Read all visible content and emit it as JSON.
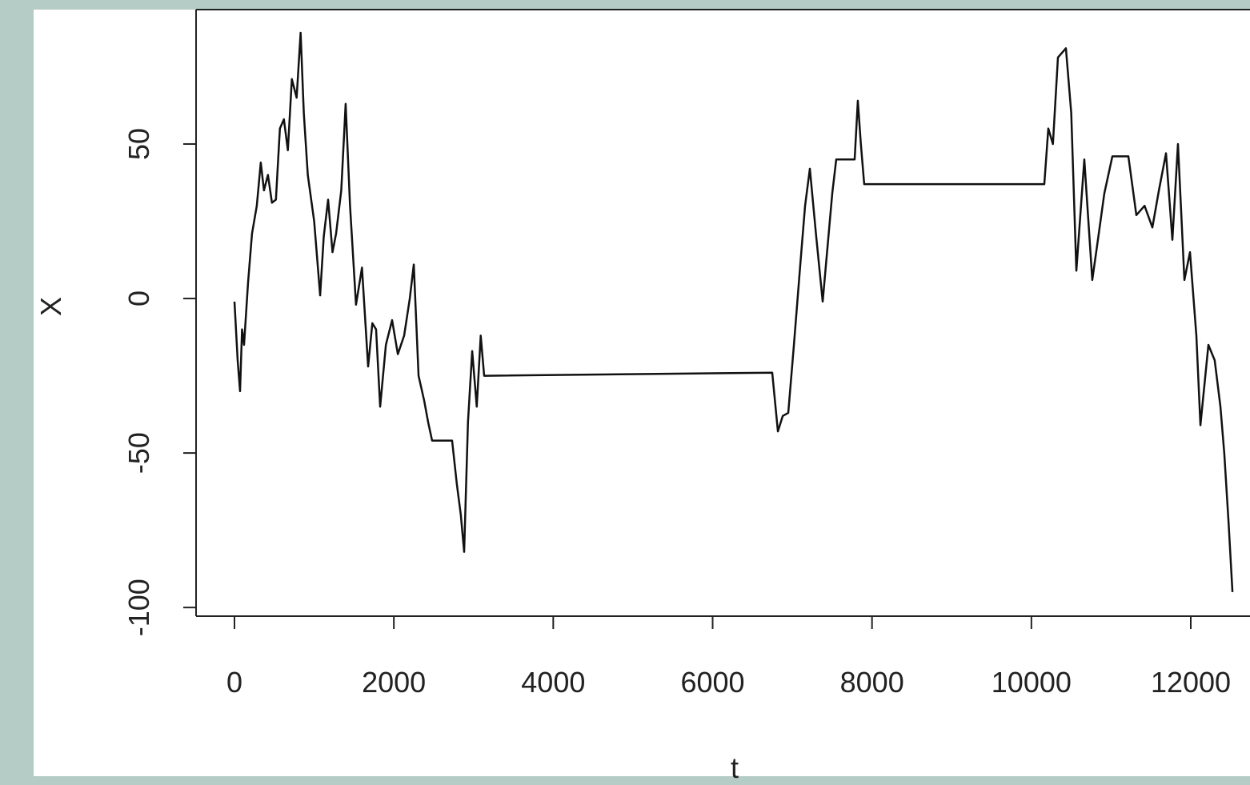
{
  "chart_data": {
    "type": "line",
    "x_label": "t",
    "y_label": "X",
    "x": [
      0,
      40,
      70,
      95,
      120,
      170,
      220,
      280,
      330,
      370,
      420,
      470,
      520,
      570,
      620,
      670,
      720,
      780,
      830,
      870,
      920,
      1000,
      1075,
      1120,
      1175,
      1230,
      1275,
      1340,
      1395,
      1450,
      1525,
      1600,
      1677,
      1730,
      1777,
      1828,
      1900,
      1978,
      2050,
      2129,
      2200,
      2250,
      2310,
      2380,
      2430,
      2480,
      2731,
      2790,
      2840,
      2882,
      2930,
      2983,
      3040,
      3090,
      3133,
      6748,
      6819,
      6880,
      6949,
      7020,
      7100,
      7160,
      7220,
      7300,
      7381,
      7501,
      7551,
      7782,
      7822,
      7860,
      7902,
      10162,
      10212,
      10270,
      10333,
      10433,
      10500,
      10564,
      10664,
      10764,
      10840,
      10915,
      11016,
      11217,
      11317,
      11420,
      11518,
      11600,
      11689,
      11769,
      11839,
      11920,
      11990,
      12070,
      12121,
      12221,
      12300,
      12372,
      12420,
      12473,
      12523
    ],
    "values": [
      -1,
      -20,
      -30,
      -10,
      -15,
      5,
      21,
      30,
      44,
      35,
      40,
      31,
      32,
      55,
      58,
      48,
      71,
      65,
      86,
      60,
      40,
      25,
      1,
      20,
      32,
      15,
      21,
      35,
      63,
      30,
      -2,
      10,
      -22,
      -8,
      -10,
      -35,
      -15,
      -7,
      -18,
      -12,
      0,
      11,
      -25,
      -33,
      -40,
      -46,
      -46,
      -60,
      -70,
      -82,
      -40,
      -17,
      -35,
      -12,
      -25,
      -24,
      -43,
      -38,
      -37,
      -15,
      11,
      30,
      42,
      20,
      -1,
      34,
      45,
      45,
      64,
      50,
      37,
      37,
      55,
      50,
      78,
      81,
      60,
      9,
      45,
      6,
      20,
      34,
      46,
      46,
      27,
      30,
      23,
      35,
      47,
      19,
      50,
      6,
      15,
      -12,
      -41,
      -15,
      -20,
      -35,
      -50,
      -72,
      -95
    ],
    "color": "#111111",
    "xlim": [
      -482,
      12743
    ],
    "ylim": [
      -102.8,
      93.5
    ],
    "xticks": [
      0,
      2000,
      4000,
      6000,
      8000,
      10000,
      12000
    ],
    "yticks": [
      -100,
      -50,
      0,
      50
    ]
  }
}
